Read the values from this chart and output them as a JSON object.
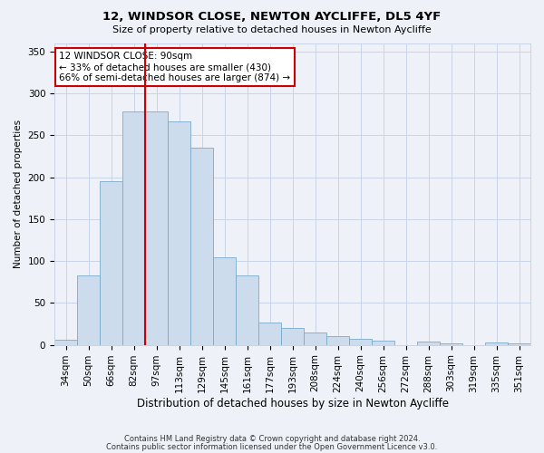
{
  "title1": "12, WINDSOR CLOSE, NEWTON AYCLIFFE, DL5 4YF",
  "title2": "Size of property relative to detached houses in Newton Aycliffe",
  "xlabel": "Distribution of detached houses by size in Newton Aycliffe",
  "ylabel": "Number of detached properties",
  "categories": [
    "34sqm",
    "50sqm",
    "66sqm",
    "82sqm",
    "97sqm",
    "113sqm",
    "129sqm",
    "145sqm",
    "161sqm",
    "177sqm",
    "193sqm",
    "208sqm",
    "224sqm",
    "240sqm",
    "256sqm",
    "272sqm",
    "288sqm",
    "303sqm",
    "319sqm",
    "335sqm",
    "351sqm"
  ],
  "values": [
    6,
    83,
    195,
    278,
    278,
    267,
    235,
    105,
    83,
    27,
    20,
    15,
    10,
    7,
    5,
    0,
    4,
    2,
    0,
    3,
    2
  ],
  "bar_color": "#ccdcec",
  "bar_edge_color": "#7aaaca",
  "vline_x": 3.5,
  "vline_color": "#cc0000",
  "annotation_text": "12 WINDSOR CLOSE: 90sqm\n← 33% of detached houses are smaller (430)\n66% of semi-detached houses are larger (874) →",
  "annotation_box_color": "#ffffff",
  "annotation_box_edge": "#cc0000",
  "ylim": [
    0,
    360
  ],
  "yticks": [
    0,
    50,
    100,
    150,
    200,
    250,
    300,
    350
  ],
  "footer1": "Contains HM Land Registry data © Crown copyright and database right 2024.",
  "footer2": "Contains public sector information licensed under the Open Government Licence v3.0.",
  "grid_color": "#c8d4e8",
  "bg_color": "#eef2f8",
  "title1_fontsize": 9.5,
  "title2_fontsize": 8.0,
  "xlabel_fontsize": 8.5,
  "ylabel_fontsize": 7.5,
  "tick_fontsize": 7.5,
  "annot_fontsize": 7.5,
  "footer_fontsize": 6.0
}
